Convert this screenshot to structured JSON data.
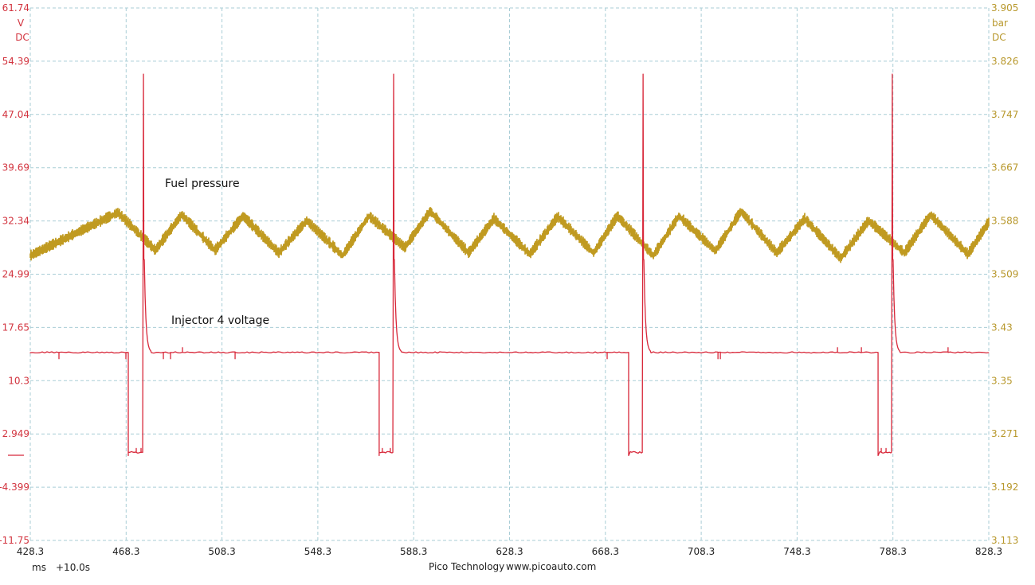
{
  "chart_data": {
    "type": "line",
    "title": "",
    "x_axis": {
      "unit": "ms",
      "offset_label": "+10.0s",
      "range": [
        428.3,
        828.3
      ],
      "ticks": [
        "428.3",
        "468.3",
        "508.3",
        "548.3",
        "588.3",
        "628.3",
        "668.3",
        "708.3",
        "748.3",
        "788.3",
        "828.3"
      ]
    },
    "left_axis": {
      "unit": "V",
      "coupling": "DC",
      "range": [
        -11.75,
        61.74
      ],
      "ticks": [
        "61.74",
        "54.39",
        "47.04",
        "39.69",
        "32.34",
        "24.99",
        "17.65",
        "10.3",
        "2.949",
        "-4.399",
        "-11.75"
      ]
    },
    "right_axis": {
      "unit": "bar",
      "coupling": "DC",
      "range": [
        3.113,
        3.905
      ],
      "ticks": [
        "3.905",
        "3.826",
        "3.747",
        "3.667",
        "3.588",
        "3.509",
        "3.43",
        "3.35",
        "3.271",
        "3.192",
        "3.113"
      ]
    },
    "grid": true,
    "series": [
      {
        "name": "Injector 4 voltage",
        "axis": "left",
        "color": "#d8283a",
        "baseline_v": 14.2,
        "low_v": 0.4,
        "spike_v": 52.6,
        "pulses": [
          {
            "off_ms": 469.2,
            "on_ms": 475.2
          },
          {
            "off_ms": 573.9,
            "on_ms": 579.6
          },
          {
            "off_ms": 678.0,
            "on_ms": 683.7
          },
          {
            "off_ms": 782.1,
            "on_ms": 787.7
          }
        ]
      },
      {
        "name": "Fuel pressure",
        "axis": "right",
        "color": "#c09a20",
        "points": [
          [
            428.3,
            3.536
          ],
          [
            464.9,
            3.6
          ],
          [
            480.5,
            3.544
          ],
          [
            491.5,
            3.597
          ],
          [
            505.4,
            3.544
          ],
          [
            517.1,
            3.595
          ],
          [
            532.0,
            3.54
          ],
          [
            543.7,
            3.588
          ],
          [
            558.6,
            3.536
          ],
          [
            569.6,
            3.595
          ],
          [
            584.6,
            3.548
          ],
          [
            595.2,
            3.602
          ],
          [
            611.2,
            3.54
          ],
          [
            621.8,
            3.591
          ],
          [
            636.8,
            3.538
          ],
          [
            648.4,
            3.594
          ],
          [
            663.4,
            3.54
          ],
          [
            673.3,
            3.595
          ],
          [
            688.3,
            3.536
          ],
          [
            699.0,
            3.595
          ],
          [
            714.2,
            3.543
          ],
          [
            724.9,
            3.602
          ],
          [
            739.8,
            3.54
          ],
          [
            751.5,
            3.591
          ],
          [
            766.5,
            3.532
          ],
          [
            778.1,
            3.588
          ],
          [
            793.1,
            3.54
          ],
          [
            804.0,
            3.597
          ],
          [
            819.6,
            3.538
          ],
          [
            828.3,
            3.586
          ]
        ]
      }
    ]
  },
  "footer": {
    "brand": "Pico Technology",
    "url": "www.picoauto.com"
  }
}
